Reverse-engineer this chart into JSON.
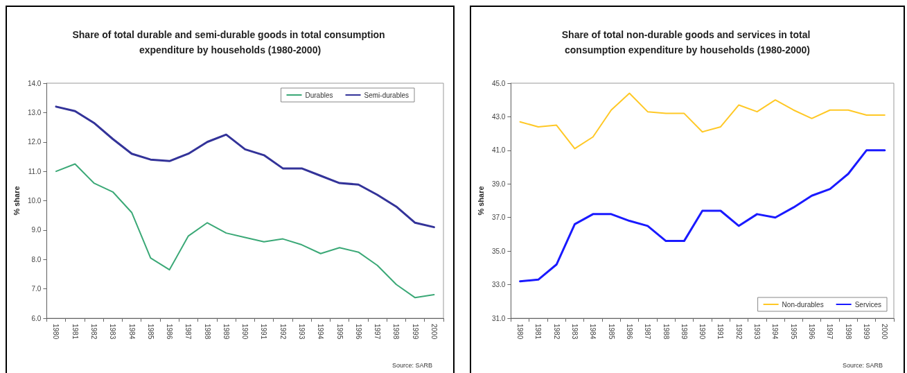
{
  "chart_data": [
    {
      "type": "line",
      "title": "Share of total durable and semi-durable goods in total consumption expenditure by households (1980-2000)",
      "ylabel": "% share",
      "categories": [
        "1980",
        "1981",
        "1982",
        "1983",
        "1984",
        "1985",
        "1986",
        "1987",
        "1988",
        "1989",
        "1990",
        "1991",
        "1992",
        "1993",
        "1994",
        "1995",
        "1996",
        "1997",
        "1998",
        "1999",
        "2000"
      ],
      "series": [
        {
          "name": "Durables",
          "color": "#3aa876",
          "values": [
            11.0,
            11.25,
            10.6,
            10.3,
            9.6,
            8.05,
            7.65,
            8.8,
            9.25,
            8.9,
            8.75,
            8.6,
            8.7,
            8.5,
            8.2,
            8.4,
            8.25,
            7.8,
            7.15,
            6.7,
            6.8
          ]
        },
        {
          "name": "Semi-durables",
          "color": "#333399",
          "values": [
            13.2,
            13.05,
            12.65,
            12.1,
            11.6,
            11.4,
            11.35,
            11.6,
            12.0,
            12.25,
            11.75,
            11.55,
            11.1,
            11.1,
            10.85,
            10.6,
            10.55,
            10.2,
            9.8,
            9.25,
            9.1
          ]
        }
      ],
      "ylim": [
        6,
        14
      ],
      "yticks": [
        {
          "value": 6,
          "label": "6.0"
        },
        {
          "value": 7,
          "label": "7.0"
        },
        {
          "value": 8,
          "label": "8.0"
        },
        {
          "value": 9,
          "label": "9.0"
        },
        {
          "value": 10,
          "label": "10.0"
        },
        {
          "value": 11,
          "label": "11.0"
        },
        {
          "value": 12,
          "label": "12.0"
        },
        {
          "value": 13,
          "label": "13.0"
        },
        {
          "value": 14,
          "label": "14.0"
        }
      ],
      "grid": false,
      "legend": "top right",
      "marker": "none",
      "line_style": "solid",
      "annotations": [
        "Source: SARB"
      ]
    },
    {
      "type": "line",
      "title": "Share of total non-durable goods and services in total consumption expenditure by households (1980-2000)",
      "ylabel": "% share",
      "categories": [
        "1980",
        "1981",
        "1982",
        "1983",
        "1984",
        "1985",
        "1986",
        "1987",
        "1988",
        "1989",
        "1990",
        "1991",
        "1992",
        "1993",
        "1994",
        "1995",
        "1996",
        "1997",
        "1998",
        "1999",
        "2000"
      ],
      "series": [
        {
          "name": "Non-durables",
          "color": "#ffc825",
          "values": [
            42.7,
            42.4,
            42.5,
            41.1,
            41.8,
            43.4,
            44.4,
            43.3,
            43.2,
            43.2,
            42.1,
            42.4,
            43.7,
            43.3,
            44.0,
            43.4,
            42.9,
            43.4,
            43.4,
            43.1,
            43.1
          ]
        },
        {
          "name": "Services",
          "color": "#1a1aff",
          "values": [
            33.2,
            33.3,
            34.2,
            36.6,
            37.2,
            37.2,
            36.8,
            36.5,
            35.6,
            35.6,
            37.4,
            37.4,
            36.5,
            37.2,
            37.0,
            37.6,
            38.3,
            38.7,
            39.6,
            41.0,
            41.0
          ]
        }
      ],
      "ylim": [
        31,
        45
      ],
      "yticks": [
        {
          "value": 31,
          "label": "31.0"
        },
        {
          "value": 33,
          "label": "33.0"
        },
        {
          "value": 35,
          "label": "35.0"
        },
        {
          "value": 37,
          "label": "37.0"
        },
        {
          "value": 39,
          "label": "39.0"
        },
        {
          "value": 41,
          "label": "41.0"
        },
        {
          "value": 43,
          "label": "43.0"
        },
        {
          "value": 45,
          "label": "45.0"
        }
      ],
      "grid": false,
      "legend": "bottom right",
      "marker": "none",
      "line_style": "solid",
      "annotations": [
        "Source: SARB"
      ]
    }
  ]
}
